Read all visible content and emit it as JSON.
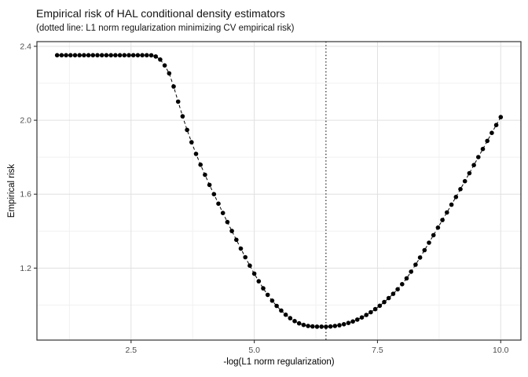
{
  "chart_data": {
    "type": "scatter-line",
    "title": "Empirical risk of HAL conditional density estimators",
    "subtitle": "(dotted line: L1 norm regularization minimizing CV empirical risk)",
    "xlabel": "-log(L1 norm regularization)",
    "ylabel": "Empirical risk",
    "x_ticks": [
      2.5,
      5.0,
      7.5,
      10.0
    ],
    "x_tick_labels": [
      "2.5",
      "5.0",
      "7.5",
      "10.0"
    ],
    "y_ticks": [
      1.2,
      1.6,
      2.0,
      2.4
    ],
    "y_tick_labels": [
      "1.2",
      "1.6",
      "2.0",
      "2.4"
    ],
    "x_minor_ticks": [
      1.25,
      3.75,
      6.25,
      8.75
    ],
    "y_minor_ticks": [
      1.0,
      1.4,
      1.8,
      2.2
    ],
    "xlim": [
      0.59,
      10.41
    ],
    "ylim": [
      0.8106,
      2.4254
    ],
    "x_range": [
      1.0,
      10.0
    ],
    "n_points": 100,
    "vline_x": 6.4545,
    "flat_risk_value": 2.352,
    "min_risk_value": 0.883,
    "end_risk_value": 2.017,
    "series_anchor_points": [
      [
        1.0,
        2.352
      ],
      [
        2.9,
        2.352
      ],
      [
        3.0,
        2.345
      ],
      [
        3.1,
        2.327
      ],
      [
        3.2,
        2.29
      ],
      [
        3.3,
        2.24
      ],
      [
        3.4,
        2.15
      ],
      [
        3.5,
        2.06
      ],
      [
        3.6,
        1.975
      ],
      [
        3.7,
        1.9
      ],
      [
        3.8,
        1.83
      ],
      [
        3.9,
        1.765
      ],
      [
        4.0,
        1.705
      ],
      [
        4.1,
        1.645
      ],
      [
        4.2,
        1.59
      ],
      [
        4.3,
        1.533
      ],
      [
        4.4,
        1.478
      ],
      [
        4.5,
        1.425
      ],
      [
        4.6,
        1.372
      ],
      [
        4.7,
        1.32
      ],
      [
        4.8,
        1.268
      ],
      [
        4.9,
        1.218
      ],
      [
        5.0,
        1.17
      ],
      [
        5.1,
        1.125
      ],
      [
        5.2,
        1.083
      ],
      [
        5.3,
        1.045
      ],
      [
        5.4,
        1.012
      ],
      [
        5.5,
        0.982
      ],
      [
        5.6,
        0.956
      ],
      [
        5.7,
        0.934
      ],
      [
        5.8,
        0.916
      ],
      [
        5.9,
        0.902
      ],
      [
        6.0,
        0.8925
      ],
      [
        6.1,
        0.8865
      ],
      [
        6.2,
        0.884
      ],
      [
        6.3,
        0.8832
      ],
      [
        6.4,
        0.883
      ],
      [
        6.5,
        0.883
      ],
      [
        6.6,
        0.8855
      ],
      [
        6.7,
        0.8895
      ],
      [
        6.8,
        0.8952
      ],
      [
        6.9,
        0.9025
      ],
      [
        7.0,
        0.9115
      ],
      [
        7.1,
        0.9225
      ],
      [
        7.2,
        0.9355
      ],
      [
        7.3,
        0.9505
      ],
      [
        7.4,
        0.9675
      ],
      [
        7.5,
        0.9865
      ],
      [
        7.6,
        1.008
      ],
      [
        7.7,
        1.031
      ],
      [
        7.8,
        1.056
      ],
      [
        7.9,
        1.083
      ],
      [
        8.0,
        1.113
      ],
      [
        8.1,
        1.148
      ],
      [
        8.2,
        1.188
      ],
      [
        8.3,
        1.23
      ],
      [
        8.4,
        1.273
      ],
      [
        8.5,
        1.317
      ],
      [
        8.6,
        1.362
      ],
      [
        8.7,
        1.407
      ],
      [
        8.8,
        1.452
      ],
      [
        8.9,
        1.497
      ],
      [
        9.0,
        1.543
      ],
      [
        9.1,
        1.589
      ],
      [
        9.2,
        1.636
      ],
      [
        9.3,
        1.683
      ],
      [
        9.4,
        1.731
      ],
      [
        9.5,
        1.779
      ],
      [
        9.6,
        1.827
      ],
      [
        9.7,
        1.875
      ],
      [
        9.8,
        1.923
      ],
      [
        9.9,
        1.97
      ],
      [
        10.0,
        2.017
      ]
    ],
    "style": {
      "background_color": "#ffffff",
      "point_color": "#000000",
      "line_color": "#000000",
      "vline_color": "#000000",
      "grid_major_color": "#e0e0e0",
      "grid_minor_color": "#f1f1f1",
      "panel_border_color": "#333333",
      "tick_color": "#333333",
      "tick_label_color": "#4d4d4d"
    }
  }
}
